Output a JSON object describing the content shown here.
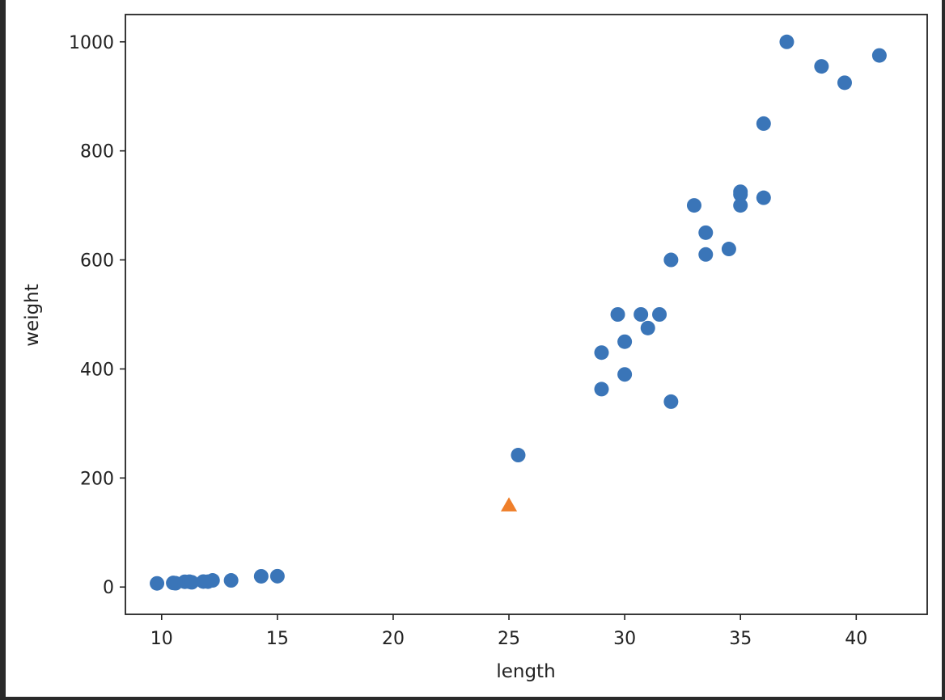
{
  "chart_data": {
    "type": "scatter",
    "title": "",
    "xlabel": "length",
    "ylabel": "weight",
    "xlim": [
      8.435,
      43.065
    ],
    "ylim": [
      -50.05,
      1050.05
    ],
    "xticks": [
      10,
      15,
      20,
      25,
      30,
      35,
      40
    ],
    "yticks": [
      0,
      200,
      400,
      600,
      800,
      1000
    ],
    "grid": false,
    "series": [
      {
        "marker": "circle",
        "color": "#3a75b8",
        "x": [
          25.4,
          29.0,
          29.0,
          30.0,
          30.0,
          29.7,
          30.7,
          31.0,
          31.5,
          32.0,
          32.0,
          33.0,
          33.5,
          33.5,
          34.5,
          35.0,
          35.0,
          35.0,
          36.0,
          36.0,
          37.0,
          38.5,
          39.5,
          41.0,
          9.8,
          10.5,
          10.6,
          11.0,
          11.2,
          11.3,
          11.8,
          12.0,
          12.2,
          13.0,
          14.3,
          15.0
        ],
        "y": [
          242,
          363,
          430,
          390,
          450,
          500,
          500,
          475,
          500,
          340,
          600,
          700,
          610,
          650,
          620,
          700,
          720,
          725,
          714,
          850,
          1000,
          955,
          925,
          975,
          6.7,
          7.5,
          7.0,
          9.7,
          9.8,
          8.7,
          10.0,
          9.9,
          12.2,
          12.2,
          19.7,
          19.9
        ]
      },
      {
        "marker": "triangle",
        "color": "#ef7f2a",
        "x": [
          25
        ],
        "y": [
          150
        ]
      }
    ]
  }
}
